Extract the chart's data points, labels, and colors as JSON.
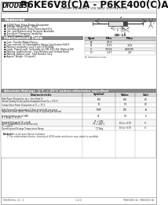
{
  "bg_color": "#ffffff",
  "title_part": "P6KE6V8(C)A - P6KE400(C)A",
  "title_sub": "600W TRANSIENT VOLTAGE SUPPRESSOR",
  "logo_text": "DIODES",
  "logo_sub": "INCORPORATED",
  "features_title": "Features",
  "features": [
    "600W Peak Pulse Power Dissipation",
    "Voltage Range:6V8 - 400V",
    "Constructed with Glass Passivated Die",
    "Uni- and Bidirectional Versions Available",
    "Excellent Clamping Capability",
    "Fast Response Time"
  ],
  "mech_title": "Mechanical Data",
  "mech_items": [
    "Case: Transfer-Molded Epoxy",
    "Case material: UL Flammability Rating Classification 94V-0",
    "Moisture sensitivity: Level 1 per J-STD-020A",
    "Leads: Plated Leads, Solderable per MIL-STD-202, Method 208",
    "Marking: Unidirectional - Type Number and Cathode Band",
    "Marking: Bidirectional - Type Number Only",
    "Approx. Weight: 0.4 grams"
  ],
  "abs_title": "Absolute Ratings  @ T⁁ = 25°C unless otherwise specified",
  "table_headers": [
    "Characteristic",
    "Symbol",
    "Value",
    "Unit"
  ],
  "dim_table_title": "DO-15",
  "dim_headers": [
    "Sym",
    "Min",
    "Max"
  ],
  "dim_rows": [
    [
      "A",
      "27.0",
      "-"
    ],
    [
      "B",
      "0.72",
      "1.02"
    ],
    [
      "C",
      "3.556",
      "4.0699"
    ],
    [
      "D",
      "1.27",
      "2.0"
    ]
  ],
  "table_rows_char": [
    "Peak Power Dissipation, tp = 1ms (Note 1)\nDerate linearly to zero pulse dissipation from Tp = 175°C",
    "Steady State Power Dissipation at TL = 75°C",
    "Peak Forward Surge Current, 8.3ms single half sine-wave,\nRepetitive rated (JEDEC Method) Duty = 4 pulses per second",
    "Forward Voltage for all VBR\nVF at IF = 5mA\nTF = 200°C",
    "Forward Voltage for IF = 1mA\nWhen Forward Bias of all device only",
    "Operating and Storage Temperature Range"
  ],
  "table_rows_sym": [
    "PPK",
    "P0",
    "IFSM",
    "IF = 50V\nTF = 200°C",
    "VF",
    "TJ Tstg"
  ],
  "table_rows_val": [
    "600",
    "5.0",
    "100",
    "5.0\n-55 to +175",
    "5.0",
    "-55 to +175"
  ],
  "table_rows_unit": [
    "W",
    "W",
    "A",
    "V\n°C",
    "V",
    "°C"
  ],
  "footer_left": "DS6494 Rev. 12 - 2",
  "footer_center": "1 of 4",
  "footer_right": "P6KE6V8(C)A - P6KE400(C)A"
}
